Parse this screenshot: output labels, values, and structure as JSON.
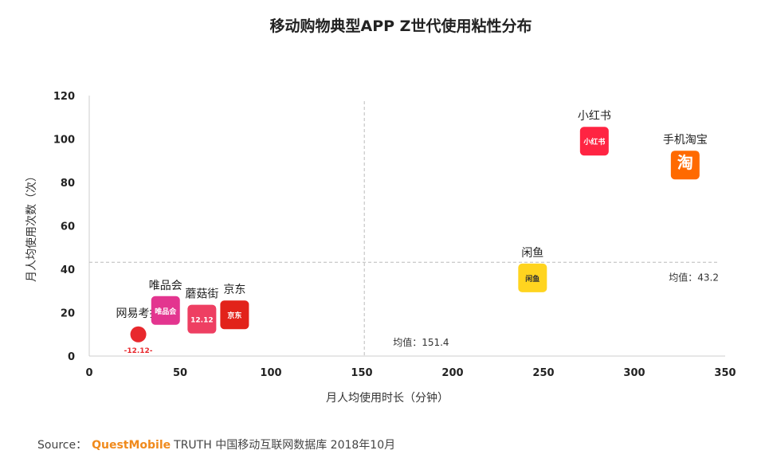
{
  "chart_data": {
    "type": "scatter",
    "title": "移动购物典型APP Z世代使用粘性分布",
    "xlabel": "月人均使用时长（分钟）",
    "ylabel": "月人均使用次数（次）",
    "xlim": [
      0,
      350
    ],
    "ylim": [
      0,
      120
    ],
    "xticks": [
      0,
      50,
      100,
      150,
      200,
      250,
      300,
      350
    ],
    "yticks": [
      0,
      20,
      40,
      60,
      80,
      100,
      120
    ],
    "x_mean": 151.4,
    "y_mean": 43.2,
    "x_mean_label": "均值：151.4",
    "y_mean_label": "均值：43.2",
    "points": [
      {
        "name": "网易考拉",
        "x": 27,
        "y": 10,
        "color": "#e8282d",
        "icon_text": "-12.12-"
      },
      {
        "name": "唯品会",
        "x": 42,
        "y": 21,
        "color": "#e3358f",
        "icon_text": "唯品会"
      },
      {
        "name": "蘑菇街",
        "x": 62,
        "y": 17,
        "color": "#ee3f62",
        "icon_text": "12.12"
      },
      {
        "name": "京东",
        "x": 80,
        "y": 19,
        "color": "#e2231a",
        "icon_text": "京东"
      },
      {
        "name": "闲鱼",
        "x": 244,
        "y": 36,
        "color": "#ffd41f",
        "icon_text": "闲鱼"
      },
      {
        "name": "小红书",
        "x": 278,
        "y": 99,
        "color": "#ff2442",
        "icon_text": "小红书"
      },
      {
        "name": "手机淘宝",
        "x": 328,
        "y": 88,
        "color": "#ff6a00",
        "icon_text": "淘"
      }
    ]
  },
  "source": {
    "prefix": "Source：",
    "brand": "QuestMobile",
    "text": "TRUTH 中国移动互联网数据库 2018年10月"
  }
}
